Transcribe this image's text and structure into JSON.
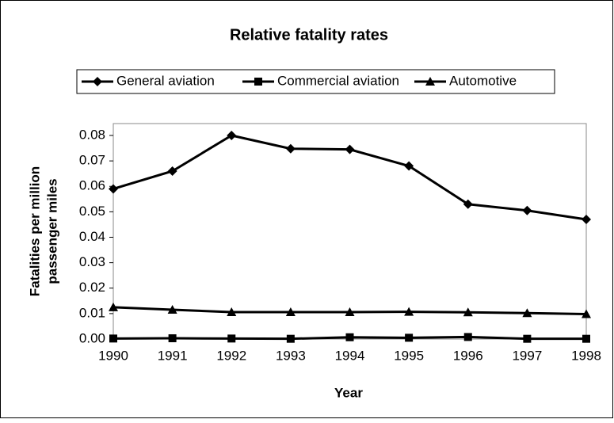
{
  "chart_data": {
    "type": "line",
    "title": "Relative fatality rates",
    "x_label": "Year",
    "y_label": [
      "Fatalities per million",
      "passenger miles"
    ],
    "categories": [
      "1990",
      "1991",
      "1992",
      "1993",
      "1994",
      "1995",
      "1996",
      "1997",
      "1998"
    ],
    "series": [
      {
        "name": "General aviation",
        "color": "#000000",
        "marker": "diamond",
        "values": [
          0.059,
          0.066,
          0.08,
          0.0748,
          0.0745,
          0.068,
          0.053,
          0.0505,
          0.047
        ]
      },
      {
        "name": "Commercial aviation",
        "color": "#000000",
        "marker": "square",
        "values": [
          0.0002,
          0.0003,
          0.0002,
          0.0001,
          0.0007,
          0.0005,
          0.0008,
          0.0001,
          0.0001
        ]
      },
      {
        "name": "Automotive",
        "color": "#000000",
        "marker": "triangle",
        "values": [
          0.0125,
          0.0115,
          0.0106,
          0.0106,
          0.0106,
          0.0107,
          0.0105,
          0.0102,
          0.0098
        ]
      }
    ],
    "ylim": [
      0,
      0.08
    ],
    "yticks": [
      {
        "value": 0,
        "label": "0.00"
      },
      0.01,
      0.02,
      0.03,
      0.04,
      0.05,
      0.06,
      0.07,
      0.08
    ],
    "grid": false,
    "legend": "top"
  }
}
